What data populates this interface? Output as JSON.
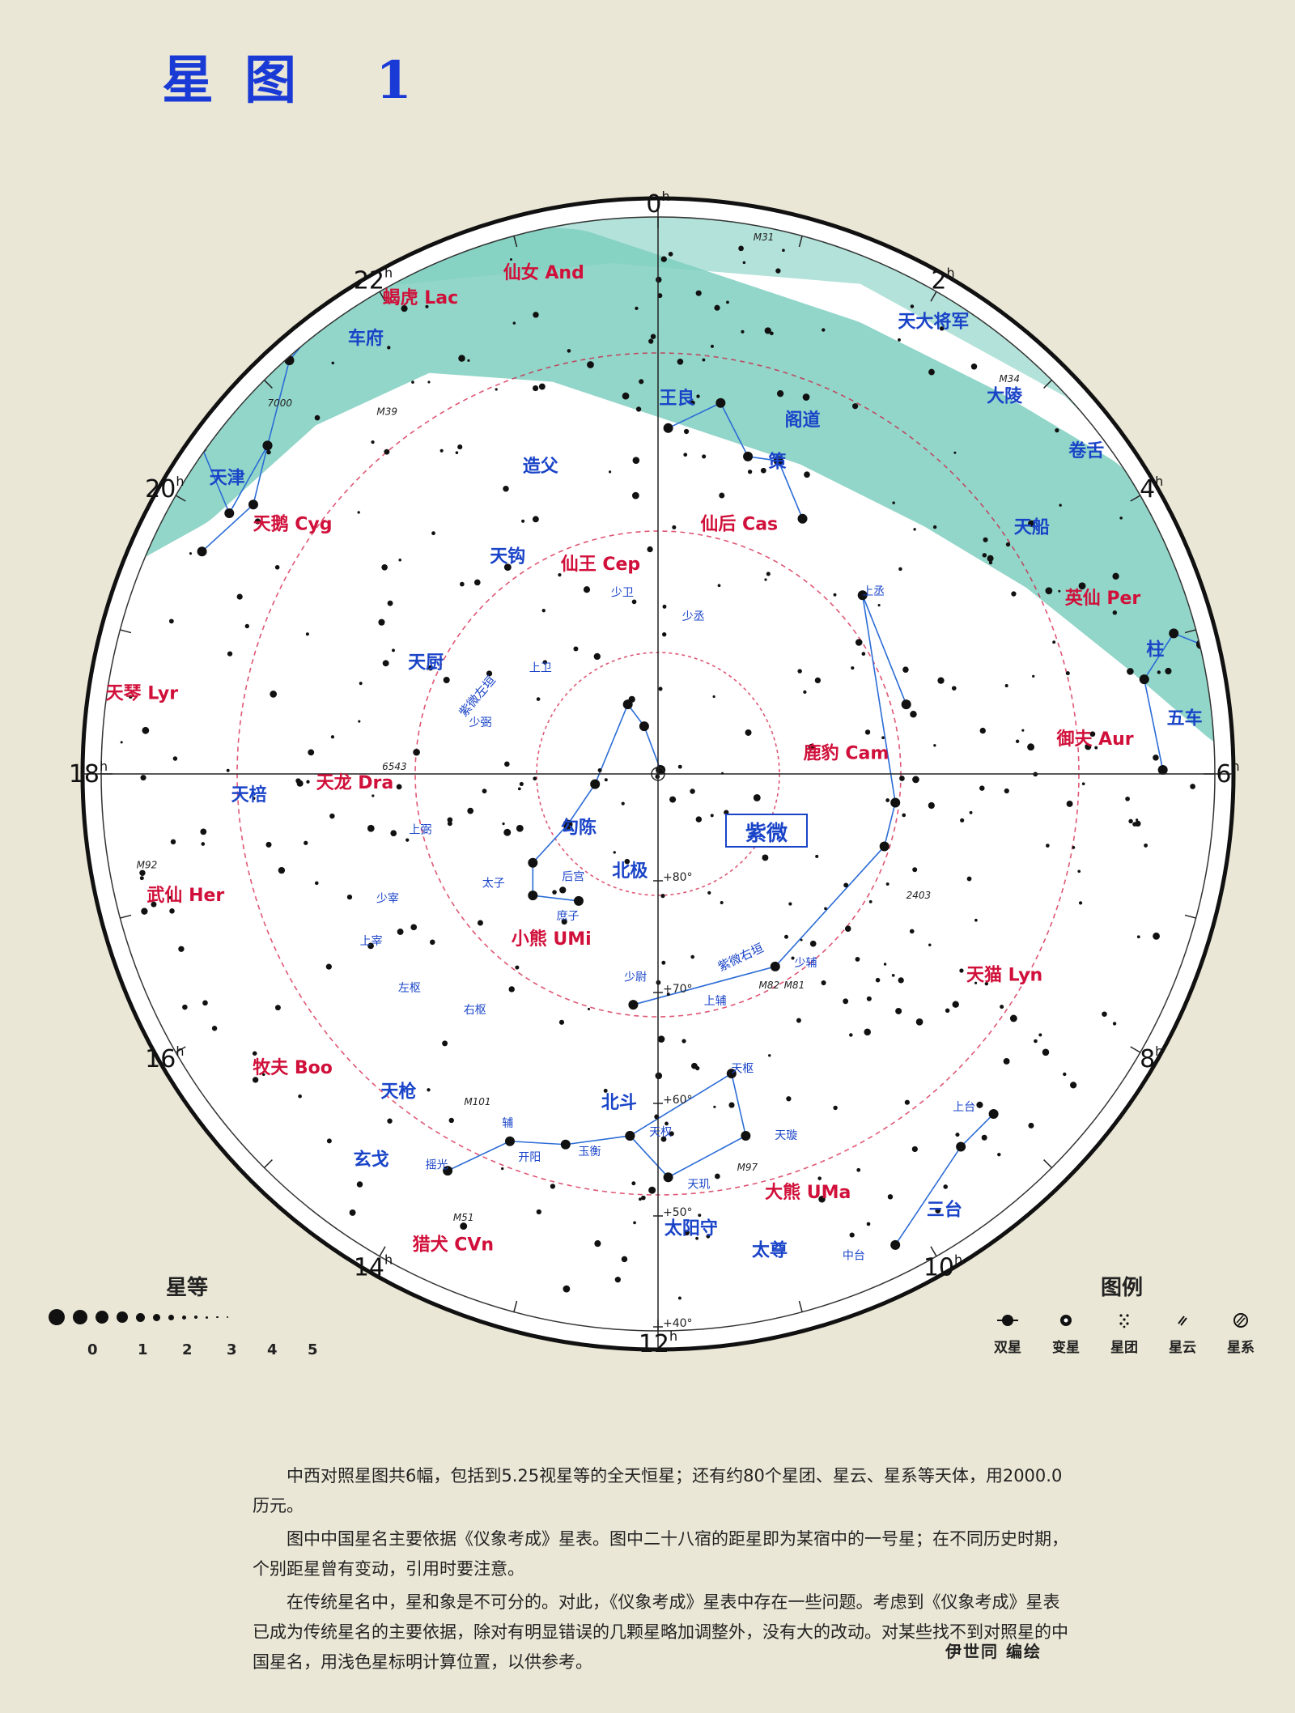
{
  "title": "星图 1",
  "hour_labels": [
    "0h",
    "2h",
    "4h",
    "6h",
    "8h",
    "10h",
    "12h",
    "14h",
    "16h",
    "18h",
    "20h",
    "22h"
  ],
  "dec_labels": [
    "+80°",
    "+70°",
    "+60°",
    "+50°",
    "+40°"
  ],
  "constellations": [
    "仙女 And",
    "蝎虎 Lac",
    "天鹅 Cyg",
    "仙王 Cep",
    "仙后 Cas",
    "英仙 Per",
    "御夫 Aur",
    "天琴 Lyr",
    "天龙 Dra",
    "鹿豹 Cam",
    "武仙 Her",
    "小熊 UMi",
    "天猫 Lyn",
    "牧夫 Boo",
    "大熊 UMa",
    "猎犬 CVn"
  ],
  "asterisms": [
    "车府",
    "天津",
    "造父",
    "天钩",
    "天厨",
    "天棓",
    "勾陈",
    "北极",
    "天大将军",
    "大陵",
    "阁道",
    "王良",
    "策",
    "卷舌",
    "天船",
    "柱",
    "五车",
    "天枪",
    "玄戈",
    "北斗",
    "太阳守",
    "太尊",
    "三台",
    "天枢",
    "后宫",
    "太子",
    "庶子",
    "少卫",
    "少丞",
    "上卫",
    "上丞",
    "少弼",
    "上弼",
    "少宰",
    "上宰",
    "左枢",
    "右枢",
    "少尉",
    "上辅",
    "少辅",
    "天玑",
    "天璇",
    "天权",
    "玉衡",
    "开阳",
    "摇光",
    "辅",
    "中台",
    "上台"
  ],
  "boxed_label": "紫微",
  "wall_labels": [
    "紫微左垣",
    "紫微右垣"
  ],
  "objects": [
    "M31",
    "M34",
    "M39",
    "M92",
    "M101",
    "M51",
    "M82",
    "M81",
    "M97",
    "7000",
    "6543",
    "2403"
  ],
  "colors": {
    "milky_way": "#7fcfbf",
    "western_names": "#d0103a",
    "chinese_names": "#1a44c8",
    "boundaries": "#d0103a",
    "lines": "#2b6cd6"
  },
  "magnitude": {
    "title": "星等",
    "labels": [
      "0",
      "1",
      "2",
      "3",
      "4",
      "5"
    ]
  },
  "legend": {
    "title": "图例",
    "items": [
      {
        "label": "双星",
        "icon": "double-star-icon"
      },
      {
        "label": "变星",
        "icon": "variable-star-icon"
      },
      {
        "label": "星团",
        "icon": "star-cluster-icon"
      },
      {
        "label": "星云",
        "icon": "nebula-icon"
      },
      {
        "label": "星系",
        "icon": "galaxy-icon"
      }
    ]
  },
  "notes": [
    "中西对照星图共6幅，包括到5.25视星等的全天恒星；还有约80个星团、星云、星系等天体，用2000.0历元。",
    "图中中国星名主要依据《仪象考成》星表。图中二十八宿的距星即为某宿中的一号星；在不同历史时期，个别距星曾有变动，引用时要注意。",
    "在传统星名中，星和象是不可分的。对此，《仪象考成》星表中存在一些问题。考虑到《仪象考成》星表已成为传统星名的主要依据，除对有明显错误的几颗星略加调整外，没有大的改动。对某些找不到对照星的中国星名，用浅色星标明计算位置，以供参考。"
  ],
  "author": "伊世同 编绘"
}
